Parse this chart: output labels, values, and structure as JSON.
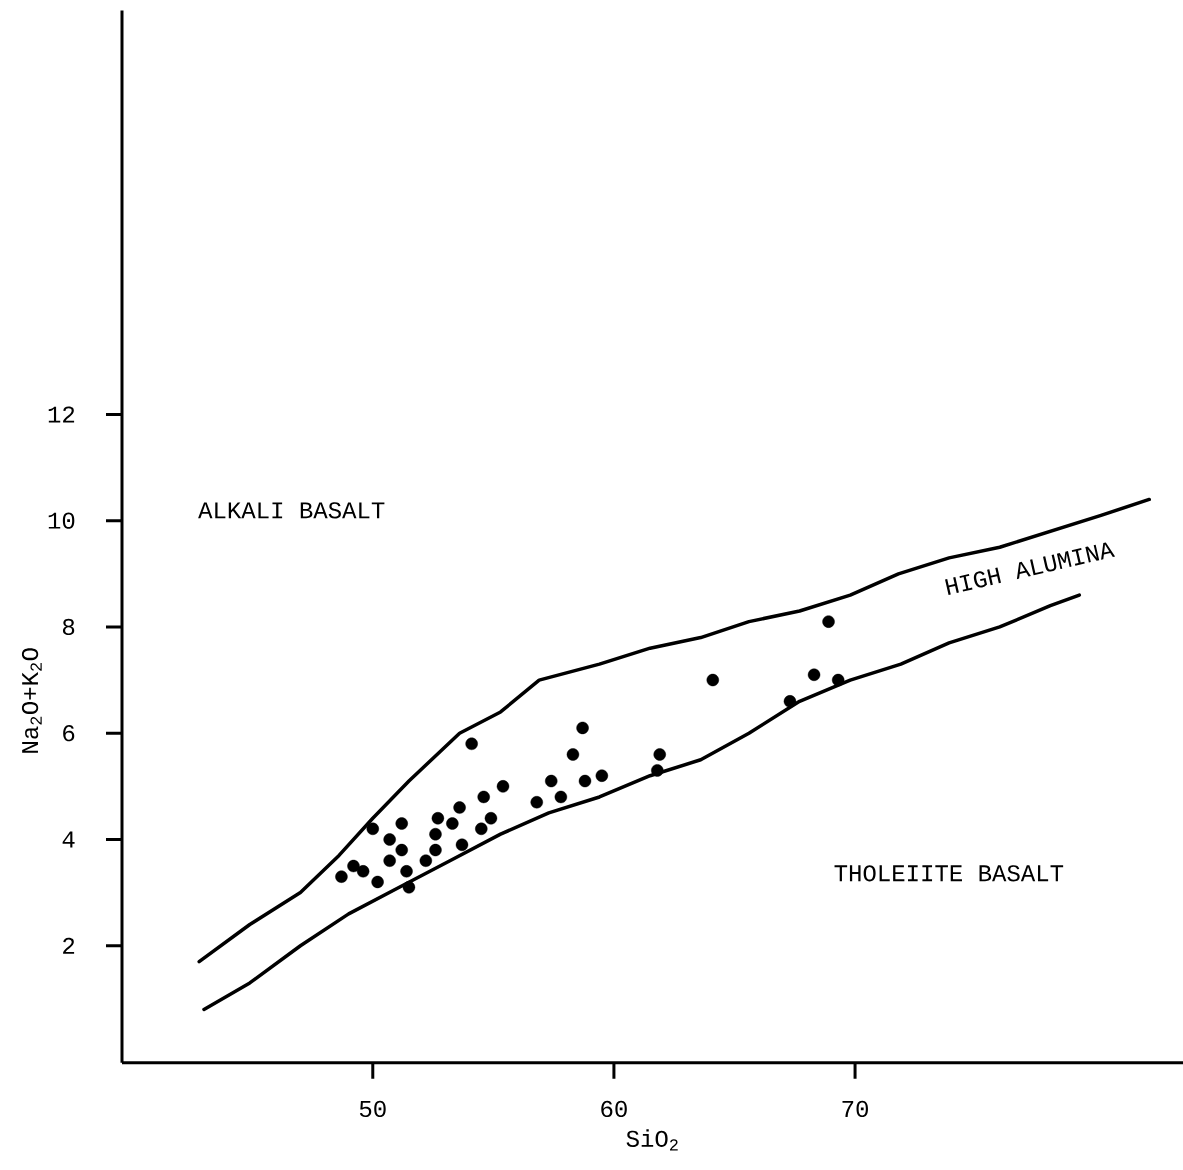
{
  "chart_data": {
    "type": "scatter",
    "xlabel": "SiO$_{2}$",
    "ylabel": "Na$_{2}$O+K$_{2}$O",
    "xlim": [
      39.6,
      83.6
    ],
    "ylim": [
      -0.2,
      19.6
    ],
    "xticks": [
      50,
      60,
      70
    ],
    "yticks": [
      2,
      4,
      6,
      8,
      10,
      12
    ],
    "annotations": [
      "ALKALI BASALT",
      "HIGH ALUMINA",
      "THOLEIITE BASALT"
    ],
    "series": [
      {
        "color": "#000000",
        "marker": "circle",
        "x": [
          48.7,
          49.2,
          49.6,
          50.2,
          50.0,
          50.7,
          50.7,
          51.2,
          51.2,
          51.4,
          51.5,
          52.2,
          52.6,
          52.6,
          52.7,
          53.3,
          53.7,
          53.6,
          54.1,
          54.5,
          54.9,
          54.6,
          55.4,
          56.8,
          57.4,
          57.8,
          58.3,
          58.7,
          58.8,
          59.5,
          61.9,
          61.8,
          64.1,
          67.3,
          68.3,
          69.3,
          68.9
        ],
        "values": [
          3.3,
          3.5,
          3.4,
          3.2,
          4.2,
          4.0,
          3.6,
          3.8,
          4.3,
          3.4,
          3.1,
          3.6,
          4.1,
          3.8,
          4.4,
          4.3,
          3.9,
          4.6,
          5.8,
          4.2,
          4.4,
          4.8,
          5.0,
          4.7,
          5.1,
          4.8,
          5.6,
          6.1,
          5.1,
          5.2,
          5.6,
          5.3,
          7.0,
          6.6,
          7.1,
          7.0,
          8.1
        ]
      },
      {
        "type": "line",
        "color": "#000000",
        "marker": "none",
        "line_style": "solid",
        "x": [
          42.8,
          44.9,
          47.0,
          48.6,
          50.0,
          51.5,
          53.6,
          55.3,
          56.9,
          59.4,
          61.5,
          63.6,
          65.6,
          67.7,
          69.8,
          71.8,
          73.9,
          76.0,
          78.1,
          80.2,
          82.2
        ],
        "values": [
          1.7,
          2.4,
          3.0,
          3.7,
          4.4,
          5.1,
          6.0,
          6.4,
          7.0,
          7.3,
          7.6,
          7.8,
          8.1,
          8.3,
          8.6,
          9.0,
          9.3,
          9.5,
          9.8,
          10.1,
          10.4
        ]
      },
      {
        "type": "line",
        "color": "#000000",
        "marker": "none",
        "line_style": "solid",
        "x": [
          43.0,
          44.9,
          47.0,
          49.0,
          51.1,
          53.2,
          55.3,
          57.3,
          59.4,
          61.5,
          63.6,
          65.6,
          67.7,
          69.8,
          71.9,
          73.9,
          76.0,
          78.1,
          79.3
        ],
        "values": [
          0.8,
          1.3,
          2.0,
          2.6,
          3.1,
          3.6,
          4.1,
          4.5,
          4.8,
          5.2,
          5.5,
          6.0,
          6.6,
          7.0,
          7.3,
          7.7,
          8.0,
          8.4,
          8.6
        ]
      }
    ]
  }
}
